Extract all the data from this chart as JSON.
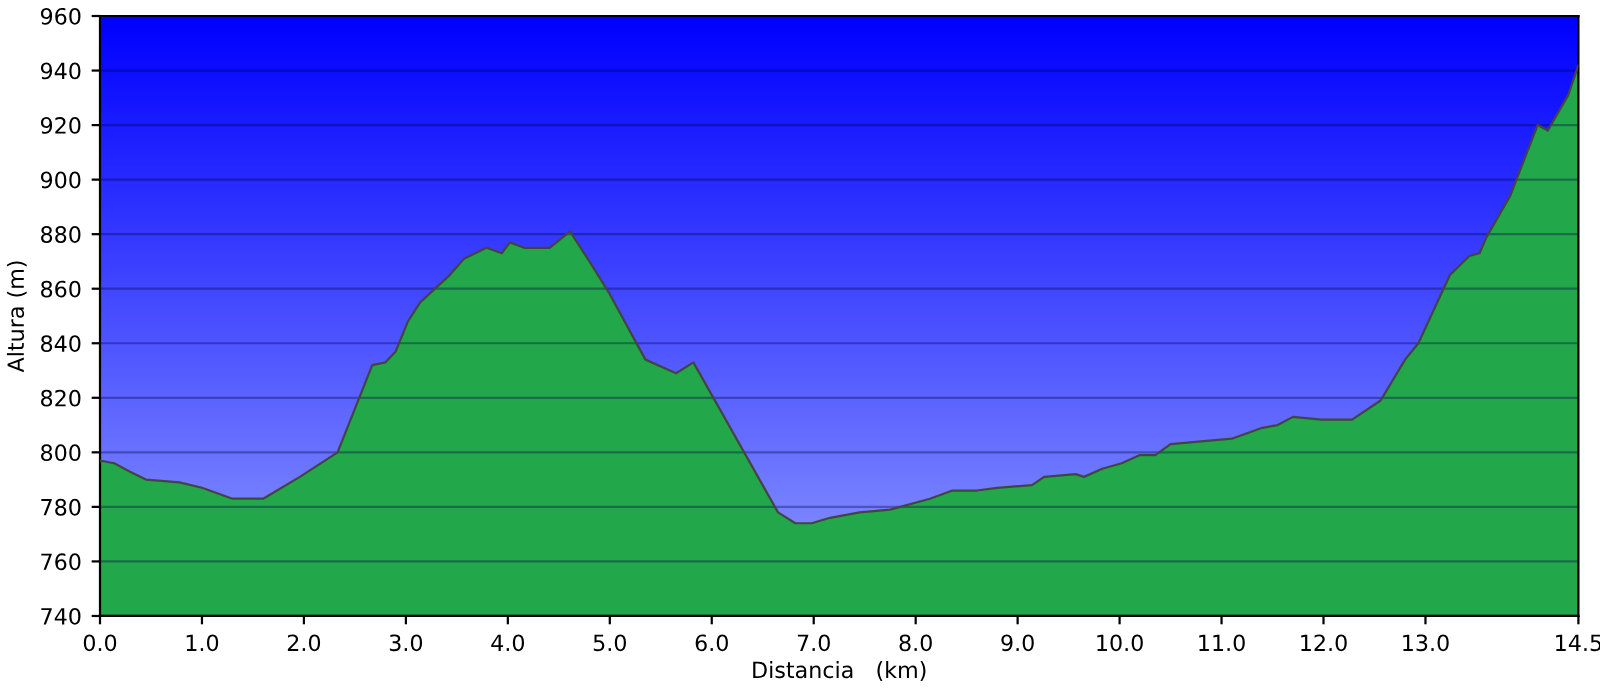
{
  "chart_data": {
    "type": "area",
    "xlabel": "Distancia   (km)",
    "ylabel": "Altura (m)",
    "x": [
      0,
      0.14,
      0.29,
      0.45,
      0.78,
      1.0,
      1.3,
      1.6,
      1.96,
      2.33,
      2.67,
      2.8,
      2.9,
      3.02,
      3.14,
      3.43,
      3.57,
      3.79,
      3.94,
      4.02,
      4.16,
      4.41,
      4.61,
      4.8,
      5.0,
      5.35,
      5.65,
      5.82,
      6.65,
      6.82,
      6.98,
      7.16,
      7.45,
      7.75,
      8.14,
      8.36,
      8.6,
      8.8,
      9.14,
      9.26,
      9.57,
      9.65,
      9.83,
      10.02,
      10.2,
      10.35,
      10.5,
      11.1,
      11.4,
      11.55,
      11.7,
      11.98,
      12.28,
      12.56,
      12.8,
      12.93,
      13.24,
      13.43,
      13.53,
      13.6,
      13.83,
      14.1,
      14.2,
      14.4,
      14.5
    ],
    "series": [
      {
        "color": "#22a84a",
        "values": [
          797,
          796,
          793,
          790,
          789,
          787,
          783,
          783,
          791,
          800,
          832,
          833,
          837,
          848,
          855,
          865,
          871,
          875,
          873,
          877,
          875,
          875,
          881,
          870,
          858,
          834,
          829,
          833,
          778,
          774,
          774,
          776,
          778,
          779,
          783,
          786,
          786,
          787,
          788,
          791,
          792,
          791,
          794,
          796,
          799,
          799,
          803,
          805,
          809,
          810,
          813,
          812,
          812,
          819,
          834,
          840,
          865,
          872,
          873,
          879,
          894,
          920,
          918,
          931,
          942
        ]
      }
    ],
    "xlim": [
      0,
      14.5
    ],
    "ylim": [
      740,
      960
    ],
    "xticks": [
      {
        "value": 0,
        "label": "0.0"
      },
      {
        "value": 1,
        "label": "1.0"
      },
      {
        "value": 2,
        "label": "2.0"
      },
      {
        "value": 3,
        "label": "3.0"
      },
      {
        "value": 4,
        "label": "4.0"
      },
      {
        "value": 5,
        "label": "5.0"
      },
      {
        "value": 6,
        "label": "6.0"
      },
      {
        "value": 7,
        "label": "7.0"
      },
      {
        "value": 8,
        "label": "8.0"
      },
      {
        "value": 9,
        "label": "9.0"
      },
      {
        "value": 10,
        "label": "10.0"
      },
      {
        "value": 11,
        "label": "11.0"
      },
      {
        "value": 12,
        "label": "12.0"
      },
      {
        "value": 13,
        "label": "13.0"
      },
      {
        "value": 14.5,
        "label": "14.5"
      }
    ],
    "yticks": [
      740,
      760,
      780,
      800,
      820,
      840,
      860,
      880,
      900,
      920,
      940,
      960
    ],
    "grid": "y"
  }
}
